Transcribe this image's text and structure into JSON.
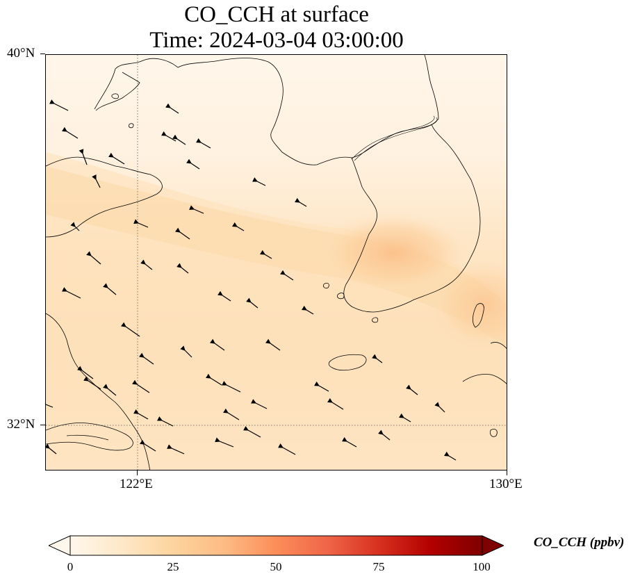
{
  "title": {
    "line1": "CO_CCH at surface",
    "line2": "Time: 2024-03-04 03:00:00"
  },
  "map": {
    "lat_labels": [
      "40°N",
      "32°N"
    ],
    "lon_labels": [
      "122°E",
      "130°E"
    ],
    "gridlines": {
      "lon": [
        122
      ],
      "lat": [
        32
      ],
      "style": "dotted"
    },
    "extent": {
      "lon_min": 120,
      "lon_max": 130,
      "lat_min": 31,
      "lat_max": 40
    },
    "field": "CO_CCH",
    "wind_vectors": "present, predominantly from the east-southeast"
  },
  "colorbar": {
    "label": "CO_CCH (ppbv)",
    "ticks": [
      "0",
      "25",
      "50",
      "75",
      "100"
    ],
    "range": [
      0,
      100
    ],
    "colormap": "OrRd",
    "extend": "both",
    "colors": [
      "#fff7ec",
      "#fee8c8",
      "#fdd49e",
      "#fdbb84",
      "#fc8d59",
      "#ef6548",
      "#d7301f",
      "#b30000",
      "#7f0000"
    ]
  }
}
